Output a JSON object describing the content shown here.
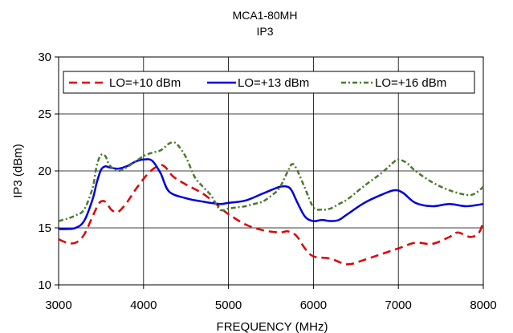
{
  "chart_data": {
    "type": "line",
    "title": "MCA1-80MH",
    "subtitle": "IP3",
    "xlabel": "FREQUENCY (MHz)",
    "ylabel": "IP3 (dBm)",
    "xlim": [
      3000,
      8000
    ],
    "ylim": [
      10,
      30
    ],
    "xticks": [
      3000,
      4000,
      5000,
      6000,
      7000,
      8000
    ],
    "yticks": [
      10,
      15,
      20,
      25,
      30
    ],
    "xtick_labels": [
      "3000",
      "4000",
      "5000",
      "6000",
      "7000",
      "8000"
    ],
    "ytick_labels": [
      "10",
      "15",
      "20",
      "25",
      "30"
    ],
    "grid": true,
    "legend_position": "top",
    "series": [
      {
        "name": "LO=+10 dBm",
        "color": "#e00000",
        "dash": "dash",
        "x": [
          3000,
          3100,
          3200,
          3300,
          3400,
          3480,
          3550,
          3620,
          3700,
          3800,
          3900,
          4000,
          4100,
          4200,
          4260,
          4350,
          4500,
          4700,
          4900,
          5000,
          5200,
          5400,
          5600,
          5700,
          5800,
          5900,
          6000,
          6200,
          6400,
          6600,
          6800,
          7000,
          7200,
          7400,
          7600,
          7700,
          7850,
          7950,
          8000
        ],
        "y": [
          14.0,
          13.7,
          13.7,
          14.4,
          16.0,
          17.2,
          17.3,
          16.6,
          16.4,
          17.2,
          18.3,
          19.3,
          20.1,
          20.5,
          20.3,
          19.5,
          18.8,
          18.0,
          16.8,
          16.2,
          15.3,
          14.8,
          14.6,
          14.7,
          14.3,
          13.2,
          12.5,
          12.3,
          11.8,
          12.2,
          12.7,
          13.2,
          13.7,
          13.6,
          14.2,
          14.6,
          14.2,
          14.6,
          15.6
        ]
      },
      {
        "name": "LO=+13 dBm",
        "color": "#0000e0",
        "dash": "solid",
        "x": [
          3000,
          3100,
          3200,
          3300,
          3400,
          3450,
          3500,
          3550,
          3600,
          3700,
          3800,
          3900,
          4000,
          4100,
          4200,
          4300,
          4500,
          4700,
          4900,
          5000,
          5200,
          5400,
          5600,
          5700,
          5750,
          5800,
          5900,
          6000,
          6100,
          6200,
          6300,
          6400,
          6600,
          6800,
          6950,
          7050,
          7200,
          7400,
          7600,
          7800,
          8000
        ],
        "y": [
          14.9,
          14.9,
          15.0,
          15.6,
          17.5,
          19.0,
          20.1,
          20.4,
          20.3,
          20.2,
          20.4,
          20.8,
          21.0,
          20.9,
          19.8,
          18.2,
          17.6,
          17.3,
          17.1,
          17.2,
          17.4,
          18.0,
          18.6,
          18.6,
          18.2,
          17.4,
          16.0,
          15.6,
          15.7,
          15.6,
          15.7,
          16.2,
          17.2,
          17.9,
          18.3,
          18.1,
          17.2,
          16.9,
          17.1,
          16.9,
          17.1
        ]
      },
      {
        "name": "LO=+16 dBm",
        "color": "#4a7a2a",
        "dash": "dashdot",
        "x": [
          3000,
          3100,
          3200,
          3300,
          3400,
          3450,
          3500,
          3550,
          3600,
          3700,
          3800,
          3900,
          4000,
          4100,
          4200,
          4300,
          4350,
          4400,
          4500,
          4600,
          4700,
          4800,
          4900,
          5000,
          5100,
          5200,
          5300,
          5400,
          5500,
          5600,
          5700,
          5750,
          5800,
          5900,
          6000,
          6100,
          6200,
          6300,
          6400,
          6600,
          6800,
          6950,
          7000,
          7100,
          7200,
          7400,
          7600,
          7800,
          7900,
          8000
        ],
        "y": [
          15.6,
          15.8,
          16.1,
          16.6,
          18.5,
          20.5,
          21.4,
          21.3,
          20.5,
          20.0,
          20.3,
          20.8,
          21.3,
          21.6,
          21.8,
          22.4,
          22.5,
          22.3,
          21.2,
          19.5,
          18.6,
          17.8,
          16.6,
          16.7,
          16.8,
          16.9,
          17.1,
          17.3,
          17.8,
          18.5,
          20.0,
          20.6,
          20.2,
          18.5,
          16.8,
          16.6,
          16.7,
          17.1,
          17.5,
          18.7,
          19.8,
          20.8,
          21.0,
          20.7,
          20.0,
          19.0,
          18.3,
          17.9,
          18.0,
          18.6
        ]
      }
    ]
  }
}
